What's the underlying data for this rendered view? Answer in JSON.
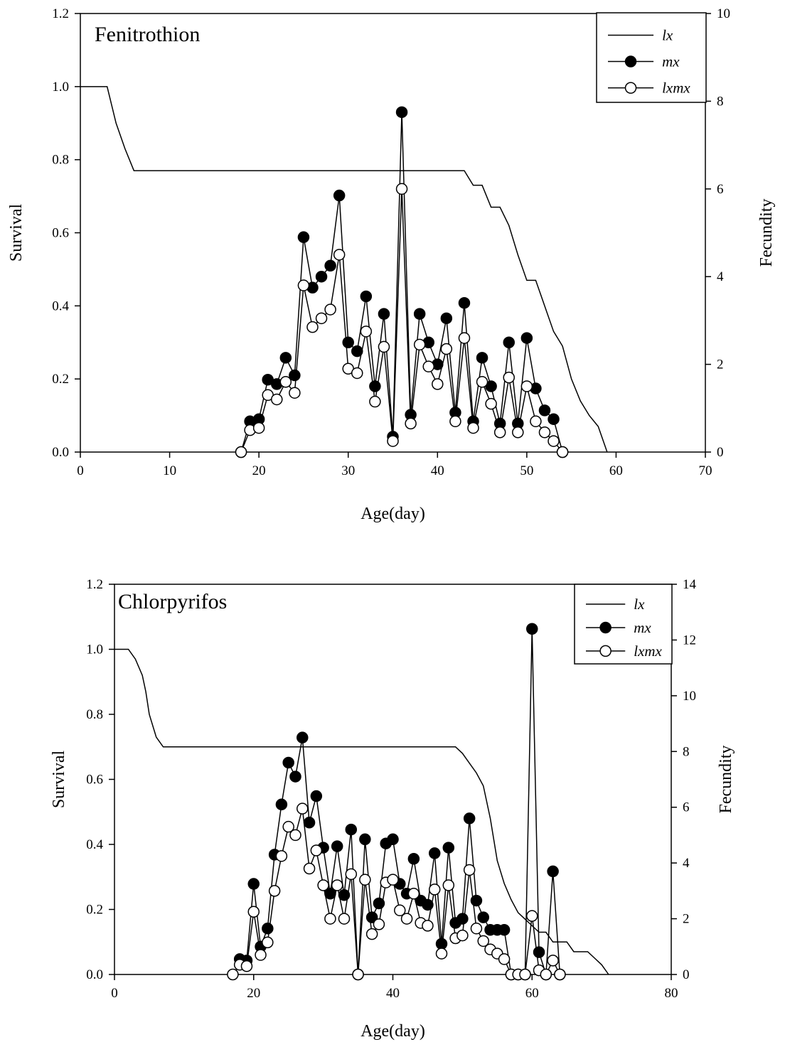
{
  "chart_data": [
    {
      "type": "line",
      "title": "Fenitrothion",
      "xlabel": "Age(day)",
      "ylabel": "Survival",
      "y2label": "Fecundity",
      "xlim": [
        0,
        70
      ],
      "ylim": [
        0,
        1.2
      ],
      "y2lim": [
        0,
        10
      ],
      "xticks": [
        0,
        10,
        20,
        30,
        40,
        50,
        60,
        70
      ],
      "yticks": [
        "0.0",
        "0.2",
        "0.4",
        "0.6",
        "0.8",
        "1.0",
        "1.2"
      ],
      "y2ticks": [
        0,
        2,
        4,
        6,
        8,
        10
      ],
      "legend_position": "top-right",
      "grid": false,
      "series": [
        {
          "name": "lx",
          "axis": "left",
          "style": "line",
          "points": [
            [
              0,
              1.0
            ],
            [
              3,
              1.0
            ],
            [
              4,
              0.9
            ],
            [
              5,
              0.83
            ],
            [
              6,
              0.77
            ],
            [
              43,
              0.77
            ],
            [
              44,
              0.73
            ],
            [
              45,
              0.73
            ],
            [
              46,
              0.67
            ],
            [
              47,
              0.67
            ],
            [
              48,
              0.62
            ],
            [
              49,
              0.54
            ],
            [
              50,
              0.47
            ],
            [
              51,
              0.47
            ],
            [
              52,
              0.4
            ],
            [
              53,
              0.33
            ],
            [
              54,
              0.29
            ],
            [
              55,
              0.2
            ],
            [
              56,
              0.14
            ],
            [
              57,
              0.1
            ],
            [
              58,
              0.07
            ],
            [
              59,
              0.0
            ]
          ]
        },
        {
          "name": "mx",
          "axis": "right",
          "style": "filled-marker",
          "points": [
            [
              18,
              0
            ],
            [
              19,
              0.7
            ],
            [
              20,
              0.75
            ],
            [
              21,
              1.65
            ],
            [
              22,
              1.55
            ],
            [
              23,
              2.15
            ],
            [
              24,
              1.75
            ],
            [
              25,
              4.9
            ],
            [
              26,
              3.75
            ],
            [
              27,
              4.0
            ],
            [
              28,
              4.25
            ],
            [
              29,
              5.85
            ],
            [
              30,
              2.5
            ],
            [
              31,
              2.3
            ],
            [
              32,
              3.55
            ],
            [
              33,
              1.5
            ],
            [
              34,
              3.15
            ],
            [
              35,
              0.35
            ],
            [
              36,
              7.75
            ],
            [
              37,
              0.85
            ],
            [
              38,
              3.15
            ],
            [
              39,
              2.5
            ],
            [
              40,
              2.0
            ],
            [
              41,
              3.05
            ],
            [
              42,
              0.9
            ],
            [
              43,
              3.4
            ],
            [
              44,
              0.7
            ],
            [
              45,
              2.15
            ],
            [
              46,
              1.5
            ],
            [
              47,
              0.65
            ],
            [
              48,
              2.5
            ],
            [
              49,
              0.65
            ],
            [
              50,
              2.6
            ],
            [
              51,
              1.45
            ],
            [
              52,
              0.95
            ],
            [
              53,
              0.75
            ],
            [
              54,
              0
            ]
          ]
        },
        {
          "name": "lxmx",
          "axis": "right",
          "style": "open-marker",
          "points": [
            [
              18,
              0
            ],
            [
              19,
              0.5
            ],
            [
              20,
              0.55
            ],
            [
              21,
              1.3
            ],
            [
              22,
              1.2
            ],
            [
              23,
              1.6
            ],
            [
              24,
              1.35
            ],
            [
              25,
              3.8
            ],
            [
              26,
              2.85
            ],
            [
              27,
              3.05
            ],
            [
              28,
              3.25
            ],
            [
              29,
              4.5
            ],
            [
              30,
              1.9
            ],
            [
              31,
              1.8
            ],
            [
              32,
              2.75
            ],
            [
              33,
              1.15
            ],
            [
              34,
              2.4
            ],
            [
              35,
              0.25
            ],
            [
              36,
              6.0
            ],
            [
              37,
              0.65
            ],
            [
              38,
              2.45
            ],
            [
              39,
              1.95
            ],
            [
              40,
              1.55
            ],
            [
              41,
              2.35
            ],
            [
              42,
              0.7
            ],
            [
              43,
              2.6
            ],
            [
              44,
              0.55
            ],
            [
              45,
              1.6
            ],
            [
              46,
              1.1
            ],
            [
              47,
              0.45
            ],
            [
              48,
              1.7
            ],
            [
              49,
              0.45
            ],
            [
              50,
              1.5
            ],
            [
              51,
              0.7
            ],
            [
              52,
              0.45
            ],
            [
              53,
              0.25
            ],
            [
              54,
              0
            ]
          ]
        }
      ]
    },
    {
      "type": "line",
      "title": "Chlorpyrifos",
      "xlabel": "Age(day)",
      "ylabel": "Survival",
      "y2label": "Fecundity",
      "xlim": [
        0,
        80
      ],
      "ylim": [
        0,
        1.2
      ],
      "y2lim": [
        0,
        14
      ],
      "xticks": [
        0,
        20,
        40,
        60,
        80
      ],
      "yticks": [
        "0.0",
        "0.2",
        "0.4",
        "0.6",
        "0.8",
        "1.0",
        "1.2"
      ],
      "y2ticks": [
        0,
        2,
        4,
        6,
        8,
        10,
        12,
        14
      ],
      "legend_position": "top-right",
      "grid": false,
      "series": [
        {
          "name": "lx",
          "axis": "left",
          "style": "line",
          "points": [
            [
              0,
              1.0
            ],
            [
              2,
              1.0
            ],
            [
              3,
              0.97
            ],
            [
              4,
              0.92
            ],
            [
              4.5,
              0.87
            ],
            [
              5,
              0.8
            ],
            [
              6,
              0.73
            ],
            [
              7,
              0.7
            ],
            [
              49,
              0.7
            ],
            [
              50,
              0.68
            ],
            [
              51,
              0.65
            ],
            [
              52,
              0.62
            ],
            [
              53,
              0.58
            ],
            [
              54,
              0.48
            ],
            [
              55,
              0.35
            ],
            [
              56,
              0.28
            ],
            [
              57,
              0.23
            ],
            [
              58,
              0.19
            ],
            [
              59,
              0.17
            ],
            [
              60,
              0.15
            ],
            [
              61,
              0.13
            ],
            [
              62,
              0.13
            ],
            [
              63,
              0.1
            ],
            [
              64,
              0.1
            ],
            [
              65,
              0.1
            ],
            [
              66,
              0.07
            ],
            [
              67,
              0.07
            ],
            [
              68,
              0.07
            ],
            [
              69,
              0.05
            ],
            [
              70,
              0.03
            ],
            [
              71,
              0.0
            ]
          ]
        },
        {
          "name": "mx",
          "axis": "right",
          "style": "filled-marker",
          "points": [
            [
              18,
              0.55
            ],
            [
              19,
              0.5
            ],
            [
              20,
              3.25
            ],
            [
              21,
              1.0
            ],
            [
              22,
              1.65
            ],
            [
              23,
              4.3
            ],
            [
              24,
              6.1
            ],
            [
              25,
              7.6
            ],
            [
              26,
              7.1
            ],
            [
              27,
              8.5
            ],
            [
              28,
              5.45
            ],
            [
              29,
              6.4
            ],
            [
              30,
              4.55
            ],
            [
              31,
              2.9
            ],
            [
              32,
              4.6
            ],
            [
              33,
              2.85
            ],
            [
              34,
              5.2
            ],
            [
              35,
              0
            ],
            [
              36,
              4.85
            ],
            [
              37,
              2.05
            ],
            [
              38,
              2.55
            ],
            [
              39,
              4.7
            ],
            [
              40,
              4.85
            ],
            [
              41,
              3.25
            ],
            [
              42,
              2.9
            ],
            [
              43,
              4.15
            ],
            [
              44,
              2.65
            ],
            [
              45,
              2.5
            ],
            [
              46,
              4.35
            ],
            [
              47,
              1.1
            ],
            [
              48,
              4.55
            ],
            [
              49,
              1.85
            ],
            [
              50,
              2.0
            ],
            [
              51,
              5.6
            ],
            [
              52,
              2.65
            ],
            [
              53,
              2.05
            ],
            [
              54,
              1.6
            ],
            [
              55,
              1.6
            ],
            [
              56,
              1.6
            ],
            [
              57,
              0
            ],
            [
              58,
              0
            ],
            [
              59,
              0
            ],
            [
              60,
              12.4
            ],
            [
              61,
              0.8
            ],
            [
              62,
              0
            ],
            [
              63,
              3.7
            ],
            [
              64,
              0
            ]
          ]
        },
        {
          "name": "lxmx",
          "axis": "right",
          "style": "open-marker",
          "points": [
            [
              17,
              0
            ],
            [
              18,
              0.35
            ],
            [
              19,
              0.3
            ],
            [
              20,
              2.25
            ],
            [
              21,
              0.7
            ],
            [
              22,
              1.15
            ],
            [
              23,
              3.0
            ],
            [
              24,
              4.25
            ],
            [
              25,
              5.3
            ],
            [
              26,
              5.0
            ],
            [
              27,
              5.95
            ],
            [
              28,
              3.8
            ],
            [
              29,
              4.45
            ],
            [
              30,
              3.2
            ],
            [
              31,
              2.0
            ],
            [
              32,
              3.2
            ],
            [
              33,
              2.0
            ],
            [
              34,
              3.6
            ],
            [
              35,
              0
            ],
            [
              36,
              3.4
            ],
            [
              37,
              1.45
            ],
            [
              38,
              1.8
            ],
            [
              39,
              3.3
            ],
            [
              40,
              3.4
            ],
            [
              41,
              2.3
            ],
            [
              42,
              2.0
            ],
            [
              43,
              2.9
            ],
            [
              44,
              1.85
            ],
            [
              45,
              1.75
            ],
            [
              46,
              3.05
            ],
            [
              47,
              0.75
            ],
            [
              48,
              3.2
            ],
            [
              49,
              1.3
            ],
            [
              50,
              1.4
            ],
            [
              51,
              3.75
            ],
            [
              52,
              1.65
            ],
            [
              53,
              1.2
            ],
            [
              54,
              0.9
            ],
            [
              55,
              0.75
            ],
            [
              56,
              0.55
            ],
            [
              57,
              0
            ],
            [
              58,
              0
            ],
            [
              59,
              0
            ],
            [
              60,
              2.1
            ],
            [
              61,
              0.15
            ],
            [
              62,
              0
            ],
            [
              63,
              0.5
            ],
            [
              64,
              0
            ]
          ]
        }
      ]
    }
  ]
}
